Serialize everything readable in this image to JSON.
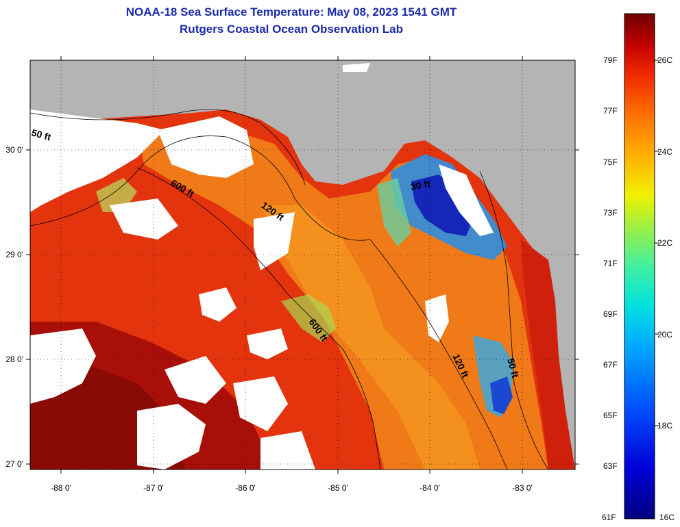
{
  "title": {
    "line1": "NOAA-18 Sea Surface Temperature:  May 08, 2023 1541 GMT",
    "line2": "Rutgers Coastal Ocean Observation Lab"
  },
  "map": {
    "lon_ticks": [
      "-88 0'",
      "-87 0'",
      "-86 0'",
      "-85 0'",
      "-84 0'",
      "-83 0'"
    ],
    "lat_ticks": [
      "30 0'",
      "29 0'",
      "28 0'",
      "27 0'"
    ],
    "contour_labels": [
      "50 ft",
      "600 ft",
      "120 ft",
      "600 ft",
      "120 ft",
      "50 ft",
      "30 ft"
    ],
    "colors": {
      "land": "#b4b4b4",
      "cloud": "#ffffff"
    }
  },
  "colorbar": {
    "fahrenheit_labels": [
      "79F",
      "77F",
      "75F",
      "73F",
      "71F",
      "69F",
      "67F",
      "65F",
      "63F",
      "61F"
    ],
    "celsius_labels": [
      "26C",
      "24C",
      "22C",
      "20C",
      "18C",
      "16C"
    ],
    "range_c": [
      16,
      27
    ]
  }
}
